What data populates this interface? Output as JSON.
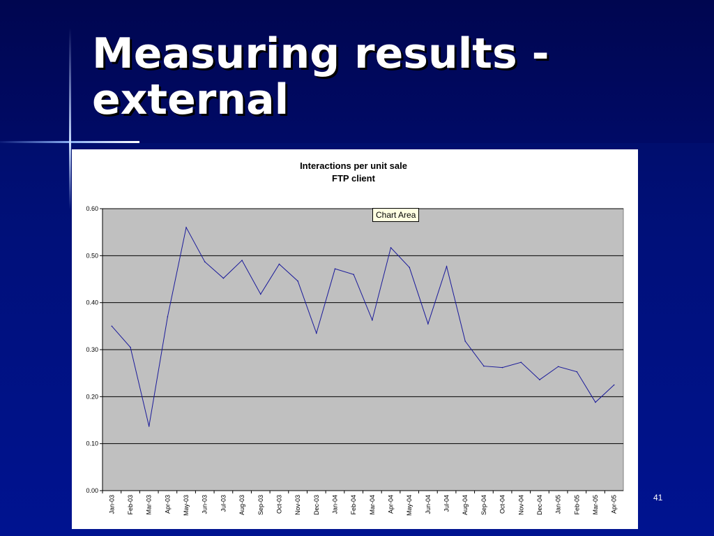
{
  "slide": {
    "title": "Measuring results - external",
    "number": "41"
  },
  "tooltip": {
    "label": "Chart Area"
  },
  "chart_data": {
    "type": "line",
    "title": "Interactions per unit sale",
    "subtitle": "FTP client",
    "xlabel": "",
    "ylabel": "",
    "ylim": [
      0,
      0.6
    ],
    "yticks": [
      "0.00",
      "0.10",
      "0.20",
      "0.30",
      "0.40",
      "0.50",
      "0.60"
    ],
    "grid": true,
    "legend": "none",
    "plot_background": "#c0c0c0",
    "line_color": "#1a1a9a",
    "categories": [
      "Jan-03",
      "Feb-03",
      "Mar-03",
      "Apr-03",
      "May-03",
      "Jun-03",
      "Jul-03",
      "Aug-03",
      "Sep-03",
      "Oct-03",
      "Nov-03",
      "Dec-03",
      "Jan-04",
      "Feb-04",
      "Mar-04",
      "Apr-04",
      "May-04",
      "Jun-04",
      "Jul-04",
      "Aug-04",
      "Sep-04",
      "Oct-04",
      "Nov-04",
      "Dec-04",
      "Jan-05",
      "Feb-05",
      "Mar-05",
      "Apr-05"
    ],
    "values": [
      0.35,
      0.305,
      0.137,
      0.37,
      0.56,
      0.487,
      0.452,
      0.49,
      0.418,
      0.482,
      0.446,
      0.335,
      0.472,
      0.46,
      0.363,
      0.517,
      0.475,
      0.355,
      0.477,
      0.318,
      0.265,
      0.262,
      0.273,
      0.236,
      0.264,
      0.253,
      0.188,
      0.225
    ]
  }
}
